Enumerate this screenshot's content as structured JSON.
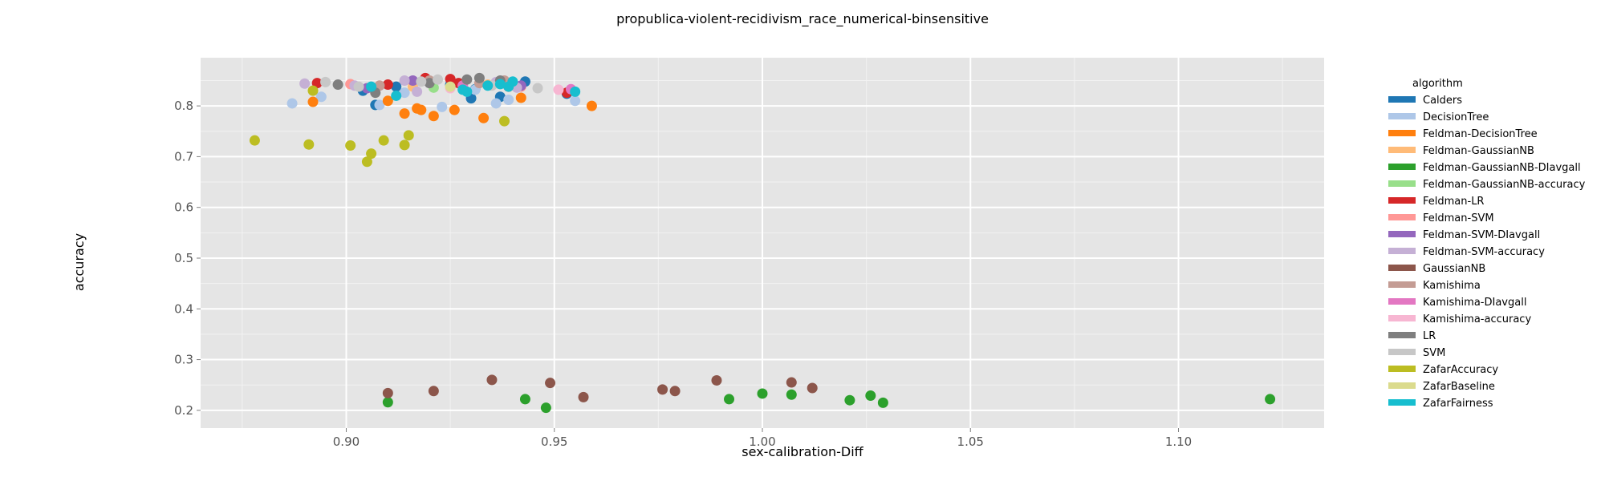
{
  "chart_data": {
    "type": "scatter",
    "title": "propublica-violent-recidivism_race_numerical-binsensitive",
    "xlabel": "sex-calibration-Diff",
    "ylabel": "accuracy",
    "xlim": [
      0.865,
      1.135
    ],
    "ylim": [
      0.165,
      0.895
    ],
    "xticks": [
      0.9,
      0.95,
      1.0,
      1.05,
      1.1
    ],
    "xtick_labels": [
      "0.90",
      "0.95",
      "1.00",
      "1.05",
      "1.10"
    ],
    "yticks": [
      0.2,
      0.3,
      0.4,
      0.5,
      0.6,
      0.7,
      0.8
    ],
    "ytick_labels": [
      "0.2",
      "0.3",
      "0.4",
      "0.5",
      "0.6",
      "0.7",
      "0.8"
    ],
    "grid": true,
    "legend_title": "algorithm",
    "legend_position": "right",
    "series": [
      {
        "name": "Calders",
        "color": "#1f77b4",
        "points": [
          [
            0.904,
            0.83
          ],
          [
            0.907,
            0.802
          ],
          [
            0.912,
            0.838
          ],
          [
            0.925,
            0.842
          ],
          [
            0.93,
            0.815
          ],
          [
            0.931,
            0.833
          ],
          [
            0.937,
            0.818
          ],
          [
            0.943,
            0.848
          ],
          [
            0.953,
            0.824
          ]
        ]
      },
      {
        "name": "DecisionTree",
        "color": "#aec7e8",
        "points": [
          [
            0.887,
            0.805
          ],
          [
            0.894,
            0.818
          ],
          [
            0.908,
            0.802
          ],
          [
            0.914,
            0.826
          ],
          [
            0.923,
            0.798
          ],
          [
            0.931,
            0.832
          ],
          [
            0.936,
            0.805
          ],
          [
            0.939,
            0.812
          ],
          [
            0.955,
            0.81
          ]
        ]
      },
      {
        "name": "Feldman-DecisionTree",
        "color": "#ff7f0e",
        "points": [
          [
            0.892,
            0.808
          ],
          [
            0.91,
            0.81
          ],
          [
            0.914,
            0.785
          ],
          [
            0.917,
            0.795
          ],
          [
            0.918,
            0.792
          ],
          [
            0.921,
            0.78
          ],
          [
            0.926,
            0.792
          ],
          [
            0.933,
            0.776
          ],
          [
            0.942,
            0.816
          ],
          [
            0.959,
            0.8
          ]
        ]
      },
      {
        "name": "Feldman-GaussianNB",
        "color": "#ffbb78",
        "points": [
          [
            0.916,
            0.838
          ],
          [
            0.934,
            0.842
          ]
        ]
      },
      {
        "name": "Feldman-GaussianNB-DIavgall",
        "color": "#2ca02c",
        "points": [
          [
            0.91,
            0.216
          ],
          [
            0.943,
            0.222
          ],
          [
            0.948,
            0.205
          ],
          [
            0.992,
            0.222
          ],
          [
            1.0,
            0.233
          ],
          [
            1.007,
            0.231
          ],
          [
            1.021,
            0.22
          ],
          [
            1.026,
            0.229
          ],
          [
            1.029,
            0.215
          ],
          [
            1.122,
            0.222
          ]
        ]
      },
      {
        "name": "Feldman-GaussianNB-accuracy",
        "color": "#98df8a",
        "points": [
          [
            0.921,
            0.836
          ]
        ]
      },
      {
        "name": "Feldman-LR",
        "color": "#d62728",
        "points": [
          [
            0.893,
            0.845
          ],
          [
            0.91,
            0.842
          ],
          [
            0.919,
            0.855
          ],
          [
            0.925,
            0.853
          ],
          [
            0.927,
            0.845
          ],
          [
            0.939,
            0.838
          ],
          [
            0.953,
            0.826
          ]
        ]
      },
      {
        "name": "Feldman-SVM",
        "color": "#ff9896",
        "points": [
          [
            0.901,
            0.843
          ],
          [
            0.928,
            0.84
          ],
          [
            0.942,
            0.838
          ]
        ]
      },
      {
        "name": "Feldman-SVM-DIavgall",
        "color": "#9467bd",
        "points": [
          [
            0.905,
            0.835
          ],
          [
            0.916,
            0.85
          ],
          [
            0.942,
            0.84
          ]
        ]
      },
      {
        "name": "Feldman-SVM-accuracy",
        "color": "#c5b0d5",
        "points": [
          [
            0.89,
            0.844
          ],
          [
            0.902,
            0.84
          ],
          [
            0.914,
            0.85
          ],
          [
            0.917,
            0.828
          ],
          [
            0.936,
            0.847
          ],
          [
            0.941,
            0.836
          ]
        ]
      },
      {
        "name": "GaussianNB",
        "color": "#8c564b",
        "points": [
          [
            0.91,
            0.234
          ],
          [
            0.921,
            0.238
          ],
          [
            0.935,
            0.26
          ],
          [
            0.949,
            0.254
          ],
          [
            0.957,
            0.226
          ],
          [
            0.976,
            0.241
          ],
          [
            0.979,
            0.238
          ],
          [
            0.989,
            0.259
          ],
          [
            1.007,
            0.255
          ],
          [
            1.012,
            0.244
          ]
        ]
      },
      {
        "name": "Kamishima",
        "color": "#c49c94",
        "points": [
          [
            0.908,
            0.84
          ],
          [
            0.92,
            0.85
          ],
          [
            0.932,
            0.845
          ],
          [
            0.938,
            0.85
          ]
        ]
      },
      {
        "name": "Kamishima-DIavgall",
        "color": "#e377c2",
        "points": [
          [
            0.928,
            0.84
          ],
          [
            0.954,
            0.833
          ]
        ]
      },
      {
        "name": "Kamishima-accuracy",
        "color": "#f7b6d2",
        "points": [
          [
            0.925,
            0.835
          ],
          [
            0.951,
            0.832
          ]
        ]
      },
      {
        "name": "LR",
        "color": "#7f7f7f",
        "points": [
          [
            0.898,
            0.842
          ],
          [
            0.907,
            0.826
          ],
          [
            0.92,
            0.845
          ],
          [
            0.929,
            0.852
          ],
          [
            0.932,
            0.855
          ],
          [
            0.937,
            0.85
          ]
        ]
      },
      {
        "name": "SVM",
        "color": "#c7c7c7",
        "points": [
          [
            0.895,
            0.847
          ],
          [
            0.903,
            0.838
          ],
          [
            0.918,
            0.848
          ],
          [
            0.922,
            0.852
          ],
          [
            0.935,
            0.84
          ],
          [
            0.946,
            0.835
          ]
        ]
      },
      {
        "name": "ZafarAccuracy",
        "color": "#bcbd22",
        "points": [
          [
            0.878,
            0.732
          ],
          [
            0.891,
            0.724
          ],
          [
            0.892,
            0.83
          ],
          [
            0.901,
            0.722
          ],
          [
            0.905,
            0.69
          ],
          [
            0.906,
            0.706
          ],
          [
            0.909,
            0.732
          ],
          [
            0.914,
            0.723
          ],
          [
            0.915,
            0.742
          ],
          [
            0.938,
            0.77
          ]
        ]
      },
      {
        "name": "ZafarBaseline",
        "color": "#dbdb8d",
        "points": [
          [
            0.925,
            0.838
          ]
        ]
      },
      {
        "name": "ZafarFairness",
        "color": "#17becf",
        "points": [
          [
            0.906,
            0.838
          ],
          [
            0.912,
            0.82
          ],
          [
            0.928,
            0.832
          ],
          [
            0.929,
            0.828
          ],
          [
            0.934,
            0.84
          ],
          [
            0.937,
            0.843
          ],
          [
            0.939,
            0.838
          ],
          [
            0.94,
            0.848
          ],
          [
            0.955,
            0.828
          ]
        ]
      }
    ]
  }
}
